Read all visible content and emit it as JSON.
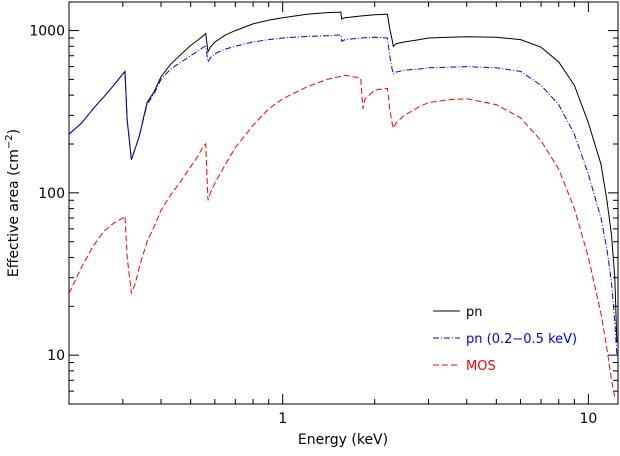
{
  "chart_data": {
    "type": "line",
    "title": "",
    "xlabel": "Energy (keV)",
    "ylabel_main": "Effective area (cm",
    "ylabel_sup": "−2",
    "ylabel_close": ")",
    "xscale": "log",
    "yscale": "log",
    "xlim": [
      0.2,
      12.5
    ],
    "ylim": [
      5,
      1500
    ],
    "x_ticks": [
      {
        "value": 1,
        "label": "1"
      },
      {
        "value": 10,
        "label": "10"
      }
    ],
    "y_ticks": [
      {
        "value": 10,
        "label": "10"
      },
      {
        "value": 100,
        "label": "100"
      },
      {
        "value": 1000,
        "label": "1000"
      }
    ],
    "legend_position": "bottom-right",
    "series": [
      {
        "name": "pn",
        "color": "#000000",
        "dash": "solid",
        "points": [
          [
            0.2,
            230
          ],
          [
            0.22,
            270
          ],
          [
            0.24,
            330
          ],
          [
            0.26,
            390
          ],
          [
            0.28,
            460
          ],
          [
            0.3,
            540
          ],
          [
            0.305,
            560
          ],
          [
            0.31,
            280
          ],
          [
            0.32,
            160
          ],
          [
            0.33,
            190
          ],
          [
            0.34,
            225
          ],
          [
            0.36,
            360
          ],
          [
            0.38,
            420
          ],
          [
            0.4,
            520
          ],
          [
            0.43,
            620
          ],
          [
            0.46,
            700
          ],
          [
            0.5,
            810
          ],
          [
            0.53,
            880
          ],
          [
            0.55,
            930
          ],
          [
            0.56,
            960
          ],
          [
            0.57,
            740
          ],
          [
            0.58,
            790
          ],
          [
            0.6,
            850
          ],
          [
            0.65,
            940
          ],
          [
            0.7,
            1000
          ],
          [
            0.8,
            1100
          ],
          [
            0.9,
            1160
          ],
          [
            1.0,
            1200
          ],
          [
            1.2,
            1260
          ],
          [
            1.4,
            1290
          ],
          [
            1.55,
            1300
          ],
          [
            1.56,
            1180
          ],
          [
            1.6,
            1200
          ],
          [
            1.8,
            1230
          ],
          [
            2.0,
            1250
          ],
          [
            2.2,
            1260
          ],
          [
            2.24,
            1030
          ],
          [
            2.28,
            880
          ],
          [
            2.3,
            800
          ],
          [
            2.35,
            830
          ],
          [
            2.5,
            850
          ],
          [
            2.8,
            880
          ],
          [
            3.0,
            900
          ],
          [
            3.5,
            910
          ],
          [
            4.0,
            915
          ],
          [
            5.0,
            910
          ],
          [
            6.0,
            880
          ],
          [
            7.0,
            790
          ],
          [
            8.0,
            640
          ],
          [
            9.0,
            460
          ],
          [
            10.0,
            270
          ],
          [
            11.0,
            150
          ],
          [
            11.5,
            90
          ],
          [
            11.9,
            55
          ],
          [
            12.2,
            30
          ],
          [
            12.4,
            12
          ]
        ]
      },
      {
        "name": "pn (0.2−0.5 keV)",
        "color": "#0000ff",
        "dash": "dashdot",
        "points": [
          [
            0.2,
            230
          ],
          [
            0.22,
            270
          ],
          [
            0.24,
            330
          ],
          [
            0.26,
            390
          ],
          [
            0.28,
            460
          ],
          [
            0.3,
            540
          ],
          [
            0.305,
            555
          ],
          [
            0.31,
            280
          ],
          [
            0.32,
            160
          ],
          [
            0.33,
            190
          ],
          [
            0.34,
            225
          ],
          [
            0.36,
            350
          ],
          [
            0.38,
            410
          ],
          [
            0.4,
            500
          ],
          [
            0.43,
            580
          ],
          [
            0.46,
            630
          ],
          [
            0.5,
            700
          ],
          [
            0.53,
            750
          ],
          [
            0.55,
            790
          ],
          [
            0.56,
            800
          ],
          [
            0.57,
            640
          ],
          [
            0.58,
            680
          ],
          [
            0.6,
            720
          ],
          [
            0.65,
            770
          ],
          [
            0.7,
            800
          ],
          [
            0.8,
            850
          ],
          [
            0.9,
            880
          ],
          [
            1.0,
            900
          ],
          [
            1.2,
            920
          ],
          [
            1.4,
            930
          ],
          [
            1.55,
            940
          ],
          [
            1.56,
            860
          ],
          [
            1.6,
            880
          ],
          [
            1.8,
            900
          ],
          [
            2.0,
            910
          ],
          [
            2.2,
            900
          ],
          [
            2.24,
            700
          ],
          [
            2.28,
            580
          ],
          [
            2.3,
            540
          ],
          [
            2.35,
            555
          ],
          [
            2.5,
            570
          ],
          [
            2.8,
            580
          ],
          [
            3.0,
            590
          ],
          [
            3.5,
            595
          ],
          [
            4.0,
            600
          ],
          [
            5.0,
            590
          ],
          [
            6.0,
            560
          ],
          [
            7.0,
            460
          ],
          [
            8.0,
            350
          ],
          [
            9.0,
            230
          ],
          [
            10.0,
            130
          ],
          [
            11.0,
            70
          ],
          [
            11.5,
            45
          ],
          [
            11.9,
            28
          ],
          [
            12.2,
            16
          ],
          [
            12.4,
            10
          ]
        ]
      },
      {
        "name": "MOS",
        "color": "#ff0000",
        "dash": "dashed",
        "points": [
          [
            0.2,
            24
          ],
          [
            0.22,
            35
          ],
          [
            0.24,
            47
          ],
          [
            0.26,
            58
          ],
          [
            0.28,
            65
          ],
          [
            0.3,
            70
          ],
          [
            0.305,
            72
          ],
          [
            0.31,
            40
          ],
          [
            0.32,
            24
          ],
          [
            0.33,
            28
          ],
          [
            0.34,
            35
          ],
          [
            0.36,
            50
          ],
          [
            0.38,
            62
          ],
          [
            0.4,
            78
          ],
          [
            0.43,
            97
          ],
          [
            0.46,
            115
          ],
          [
            0.5,
            145
          ],
          [
            0.53,
            170
          ],
          [
            0.55,
            195
          ],
          [
            0.56,
            200
          ],
          [
            0.57,
            90
          ],
          [
            0.58,
            100
          ],
          [
            0.6,
            115
          ],
          [
            0.65,
            150
          ],
          [
            0.7,
            190
          ],
          [
            0.8,
            260
          ],
          [
            0.9,
            330
          ],
          [
            1.0,
            380
          ],
          [
            1.2,
            450
          ],
          [
            1.4,
            500
          ],
          [
            1.6,
            530
          ],
          [
            1.8,
            510
          ],
          [
            1.83,
            330
          ],
          [
            1.86,
            380
          ],
          [
            2.0,
            430
          ],
          [
            2.2,
            440
          ],
          [
            2.24,
            330
          ],
          [
            2.28,
            270
          ],
          [
            2.3,
            250
          ],
          [
            2.35,
            270
          ],
          [
            2.5,
            300
          ],
          [
            2.8,
            340
          ],
          [
            3.0,
            360
          ],
          [
            3.5,
            375
          ],
          [
            4.0,
            380
          ],
          [
            5.0,
            350
          ],
          [
            6.0,
            290
          ],
          [
            7.0,
            210
          ],
          [
            8.0,
            140
          ],
          [
            9.0,
            80
          ],
          [
            10.0,
            40
          ],
          [
            11.0,
            18
          ],
          [
            11.5,
            11
          ],
          [
            11.9,
            7
          ],
          [
            12.2,
            5.5
          ]
        ]
      }
    ]
  }
}
